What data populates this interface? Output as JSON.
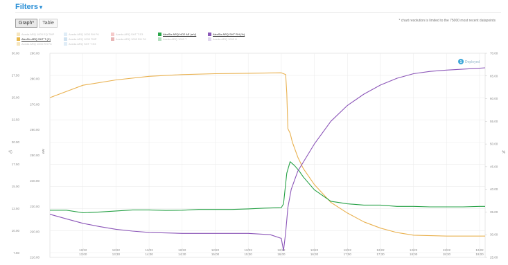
{
  "header": {
    "filters_label": "Filters",
    "caret": "▾"
  },
  "tabs": [
    {
      "label": "Graph*",
      "active": true
    },
    {
      "label": "Table",
      "active": false
    }
  ],
  "note": "* chart resolution is limited to the 75000 most recent datapoints",
  "legend": [
    {
      "label": "Axeda ARQ 1003 EQ TMP",
      "color": "#e8b84a",
      "state": "faded"
    },
    {
      "label": "Axeda ARQ 1003 RH F6",
      "color": "#a9cdea",
      "state": "faded"
    },
    {
      "label": "Axeda ARQ SHT T E3",
      "color": "#e36a6a",
      "state": "faded"
    },
    {
      "label": "AlexSix ARQ NO2 AE (mV)",
      "color": "#2aa64a",
      "state": "on"
    },
    {
      "label": "AlexSix ARQ SHT RH (%)",
      "color": "#8a58b8",
      "state": "on"
    },
    {
      "label": "AlexSix ARQ SHT T (C)",
      "color": "#e8b84a",
      "state": "on"
    },
    {
      "label": "Axeda ARQ 1003 TMP",
      "color": "#7aaed6",
      "state": "faded"
    },
    {
      "label": "Axeda ARQ 1003 RH F6",
      "color": "#c03030",
      "state": "faded"
    },
    {
      "label": "Axeda ARQ 1003 T",
      "color": "#2aa64a",
      "state": "faded"
    },
    {
      "label": "Axeda ARQ 1003 H",
      "color": "#a98fd0",
      "state": "faded"
    },
    {
      "label": "Axeda ARQ 1003 RH F6",
      "color": "#e8b84a",
      "state": "faded"
    },
    {
      "label": "Axeda ARQ SHT T E3",
      "color": "#a9cdea",
      "state": "faded"
    }
  ],
  "chart_data": {
    "type": "line",
    "x_ticks": [
      [
        "12/22",
        "13:00"
      ],
      [
        "12/22",
        "13:30"
      ],
      [
        "12/22",
        "14:00"
      ],
      [
        "12/22",
        "14:30"
      ],
      [
        "12/22",
        "15:00"
      ],
      [
        "12/22",
        "15:30"
      ],
      [
        "12/22",
        "16:00"
      ],
      [
        "12/22",
        "16:30"
      ],
      [
        "12/22",
        "17:00"
      ],
      [
        "12/22",
        "17:30"
      ],
      [
        "12/22",
        "18:00"
      ],
      [
        "12/22",
        "18:30"
      ],
      [
        "12/22",
        "19:00"
      ]
    ],
    "xlim": [
      "12:30",
      "19:05"
    ],
    "axes": [
      {
        "id": "C",
        "title": "°C",
        "position": "left-outer",
        "ylim": [
          7,
          30
        ],
        "ticks": [
          "7.50",
          "10.00",
          "12.50",
          "15.00",
          "17.50",
          "20.00",
          "22.50",
          "25.00",
          "27.50",
          "30.00"
        ]
      },
      {
        "id": "mV",
        "title": "mV",
        "position": "left-inner",
        "ylim": [
          210,
          290
        ],
        "ticks": [
          "210.00",
          "220.00",
          "230.00",
          "240.00",
          "250.00",
          "260.00",
          "270.00",
          "280.00",
          "290.00"
        ]
      },
      {
        "id": "RH",
        "title": "%",
        "position": "right",
        "ylim": [
          25,
          70
        ],
        "ticks": [
          "25.00",
          "30.00",
          "35.00",
          "40.00",
          "45.00",
          "50.00",
          "55.00",
          "60.00",
          "65.00",
          "70.00"
        ]
      }
    ],
    "series": [
      {
        "name": "AlexSix ARQ SHT T (C)",
        "axis": "C",
        "color": "#e9b14f",
        "x": [
          "12:30",
          "13:00",
          "13:30",
          "14:00",
          "14:30",
          "15:00",
          "15:30",
          "16:00",
          "16:04",
          "16:05",
          "16:06",
          "16:08",
          "16:10",
          "16:15",
          "16:20",
          "16:30",
          "16:45",
          "17:00",
          "17:15",
          "17:30",
          "17:45",
          "18:00",
          "18:30",
          "19:00",
          "19:05"
        ],
        "y": [
          25.0,
          26.4,
          27.0,
          27.4,
          27.6,
          27.7,
          27.75,
          27.8,
          27.6,
          25.5,
          21.5,
          21.0,
          20.0,
          18.3,
          17.0,
          15.2,
          13.2,
          12.0,
          11.0,
          10.3,
          9.8,
          9.5,
          9.4,
          9.4,
          9.4
        ]
      },
      {
        "name": "AlexSix ARQ NO2 AE (mV)",
        "axis": "mV",
        "color": "#24a044",
        "x": [
          "12:30",
          "12:45",
          "13:00",
          "13:15",
          "13:30",
          "13:45",
          "14:00",
          "14:15",
          "14:30",
          "14:45",
          "15:00",
          "15:15",
          "15:30",
          "15:45",
          "16:00",
          "16:02",
          "16:05",
          "16:08",
          "16:12",
          "16:16",
          "16:20",
          "16:30",
          "16:45",
          "17:00",
          "17:15",
          "17:30",
          "17:45",
          "18:00",
          "18:15",
          "18:30",
          "18:45",
          "19:00",
          "19:05"
        ],
        "y": [
          228.5,
          228.5,
          227.5,
          227.8,
          228.2,
          228.6,
          228.6,
          228.4,
          228.5,
          228.8,
          228.8,
          228.8,
          229.0,
          229.3,
          229.5,
          231.0,
          243.0,
          247.5,
          246.0,
          244.0,
          241.5,
          236.5,
          232.0,
          231.0,
          230.5,
          230.5,
          230.0,
          230.0,
          229.8,
          229.8,
          229.8,
          230.0,
          230.0
        ]
      },
      {
        "name": "AlexSix ARQ SHT RH (%)",
        "axis": "RH",
        "color": "#8b55b8",
        "x": [
          "12:30",
          "12:45",
          "13:00",
          "13:15",
          "13:30",
          "13:45",
          "14:00",
          "14:30",
          "15:00",
          "15:30",
          "15:50",
          "16:00",
          "16:02",
          "16:04",
          "16:06",
          "16:09",
          "16:15",
          "16:30",
          "16:45",
          "17:00",
          "17:15",
          "17:30",
          "17:45",
          "18:00",
          "18:15",
          "18:30",
          "18:45",
          "19:00",
          "19:05"
        ],
        "y": [
          34.5,
          33.5,
          32.5,
          31.8,
          31.2,
          30.8,
          30.5,
          30.3,
          30.3,
          30.3,
          30.0,
          29.2,
          26.5,
          30.5,
          36.0,
          40.0,
          44.0,
          50.0,
          55.0,
          58.5,
          61.0,
          63.0,
          64.5,
          65.5,
          66.0,
          66.3,
          66.5,
          66.7,
          66.8
        ]
      }
    ],
    "annotation": {
      "marker": "1",
      "label": "Deployed",
      "x": "18:43"
    },
    "grid": true,
    "legend_position": "top-left"
  }
}
